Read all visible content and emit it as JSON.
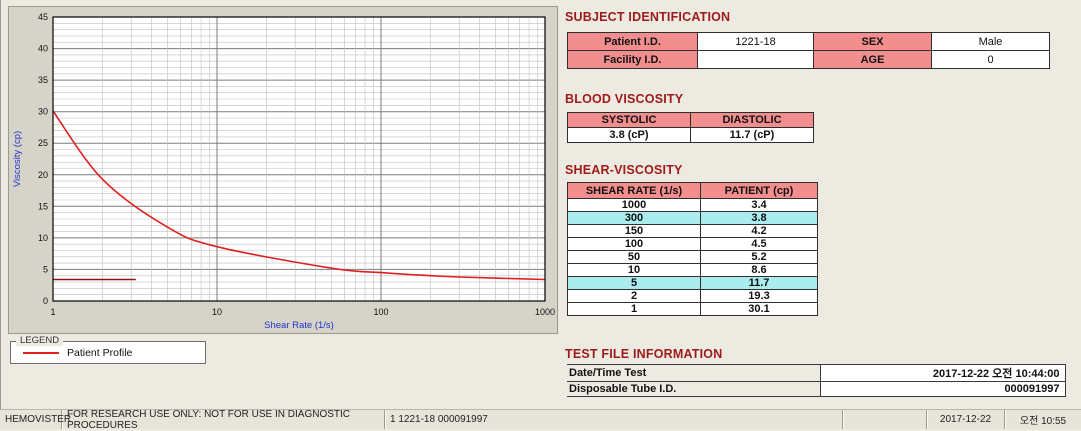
{
  "window": {
    "name": "HEMOVISTER viscosity report"
  },
  "colors": {
    "section_title": "#9E1A1A",
    "header_cell_pink": "#F38E8E",
    "highlight_cyan": "#ABEDEF",
    "series_red": "#e01f1f",
    "axis_title_blue": "#2233cc"
  },
  "chart_data": {
    "type": "line",
    "title": "",
    "xlabel": "Shear Rate (1/s)",
    "ylabel": "Viscosity (cp)",
    "x_scale": "log",
    "xlim": [
      1,
      1000
    ],
    "ylim": [
      0,
      45
    ],
    "x_ticks": [
      1,
      10,
      100,
      1000
    ],
    "y_ticks": [
      0,
      5,
      10,
      15,
      20,
      25,
      30,
      35,
      40,
      45
    ],
    "grid": true,
    "series": [
      {
        "name": "Patient Profile",
        "color": "#e01f1f",
        "x": [
          1,
          2,
          5,
          10,
          50,
          100,
          150,
          300,
          1000
        ],
        "y": [
          30.1,
          19.3,
          11.7,
          8.6,
          5.2,
          4.5,
          4.2,
          3.8,
          3.4
        ]
      }
    ],
    "flat_segment": {
      "y": 3.4,
      "x_from": 1,
      "x_to": 3.2,
      "color": "#8a1515"
    },
    "legend": {
      "box_label": "LEGEND",
      "position": "below-left",
      "entries": [
        {
          "label": "Patient Profile",
          "color": "#e01f1f"
        }
      ]
    }
  },
  "subject": {
    "title": "SUBJECT IDENTIFICATION",
    "rows": [
      {
        "l1": "Patient I.D.",
        "v1": "1221-18",
        "l2": "SEX",
        "v2": "Male"
      },
      {
        "l1": "Facility I.D.",
        "v1": "",
        "l2": "AGE",
        "v2": "0"
      }
    ]
  },
  "blood": {
    "title": "BLOOD VISCOSITY",
    "headers": [
      "SYSTOLIC",
      "DIASTOLIC"
    ],
    "values": [
      "3.8 (cP)",
      "11.7 (cP)"
    ]
  },
  "shear": {
    "title": "SHEAR-VISCOSITY",
    "headers": [
      "SHEAR RATE (1/s)",
      "PATIENT (cp)"
    ],
    "rows": [
      {
        "rate": "1000",
        "value": "3.4",
        "highlight": false
      },
      {
        "rate": "300",
        "value": "3.8",
        "highlight": true
      },
      {
        "rate": "150",
        "value": "4.2",
        "highlight": false
      },
      {
        "rate": "100",
        "value": "4.5",
        "highlight": false
      },
      {
        "rate": "50",
        "value": "5.2",
        "highlight": false
      },
      {
        "rate": "10",
        "value": "8.6",
        "highlight": false
      },
      {
        "rate": "5",
        "value": "11.7",
        "highlight": true
      },
      {
        "rate": "2",
        "value": "19.3",
        "highlight": false
      },
      {
        "rate": "1",
        "value": "30.1",
        "highlight": false
      }
    ]
  },
  "testfile": {
    "title": "TEST FILE INFORMATION",
    "rows": [
      {
        "label": "Date/Time Test",
        "value": "2017-12-22  오전 10:44:00"
      },
      {
        "label": "Disposable Tube I.D.",
        "value": "000091997"
      }
    ]
  },
  "statusbar": {
    "sections": [
      "HEMOVISTER",
      "FOR RESEARCH USE ONLY: NOT FOR USE IN DIAGNOSTIC PROCEDURES",
      "1 1221-18 000091997",
      "",
      "2017-12-22",
      "오전 10:55"
    ]
  }
}
